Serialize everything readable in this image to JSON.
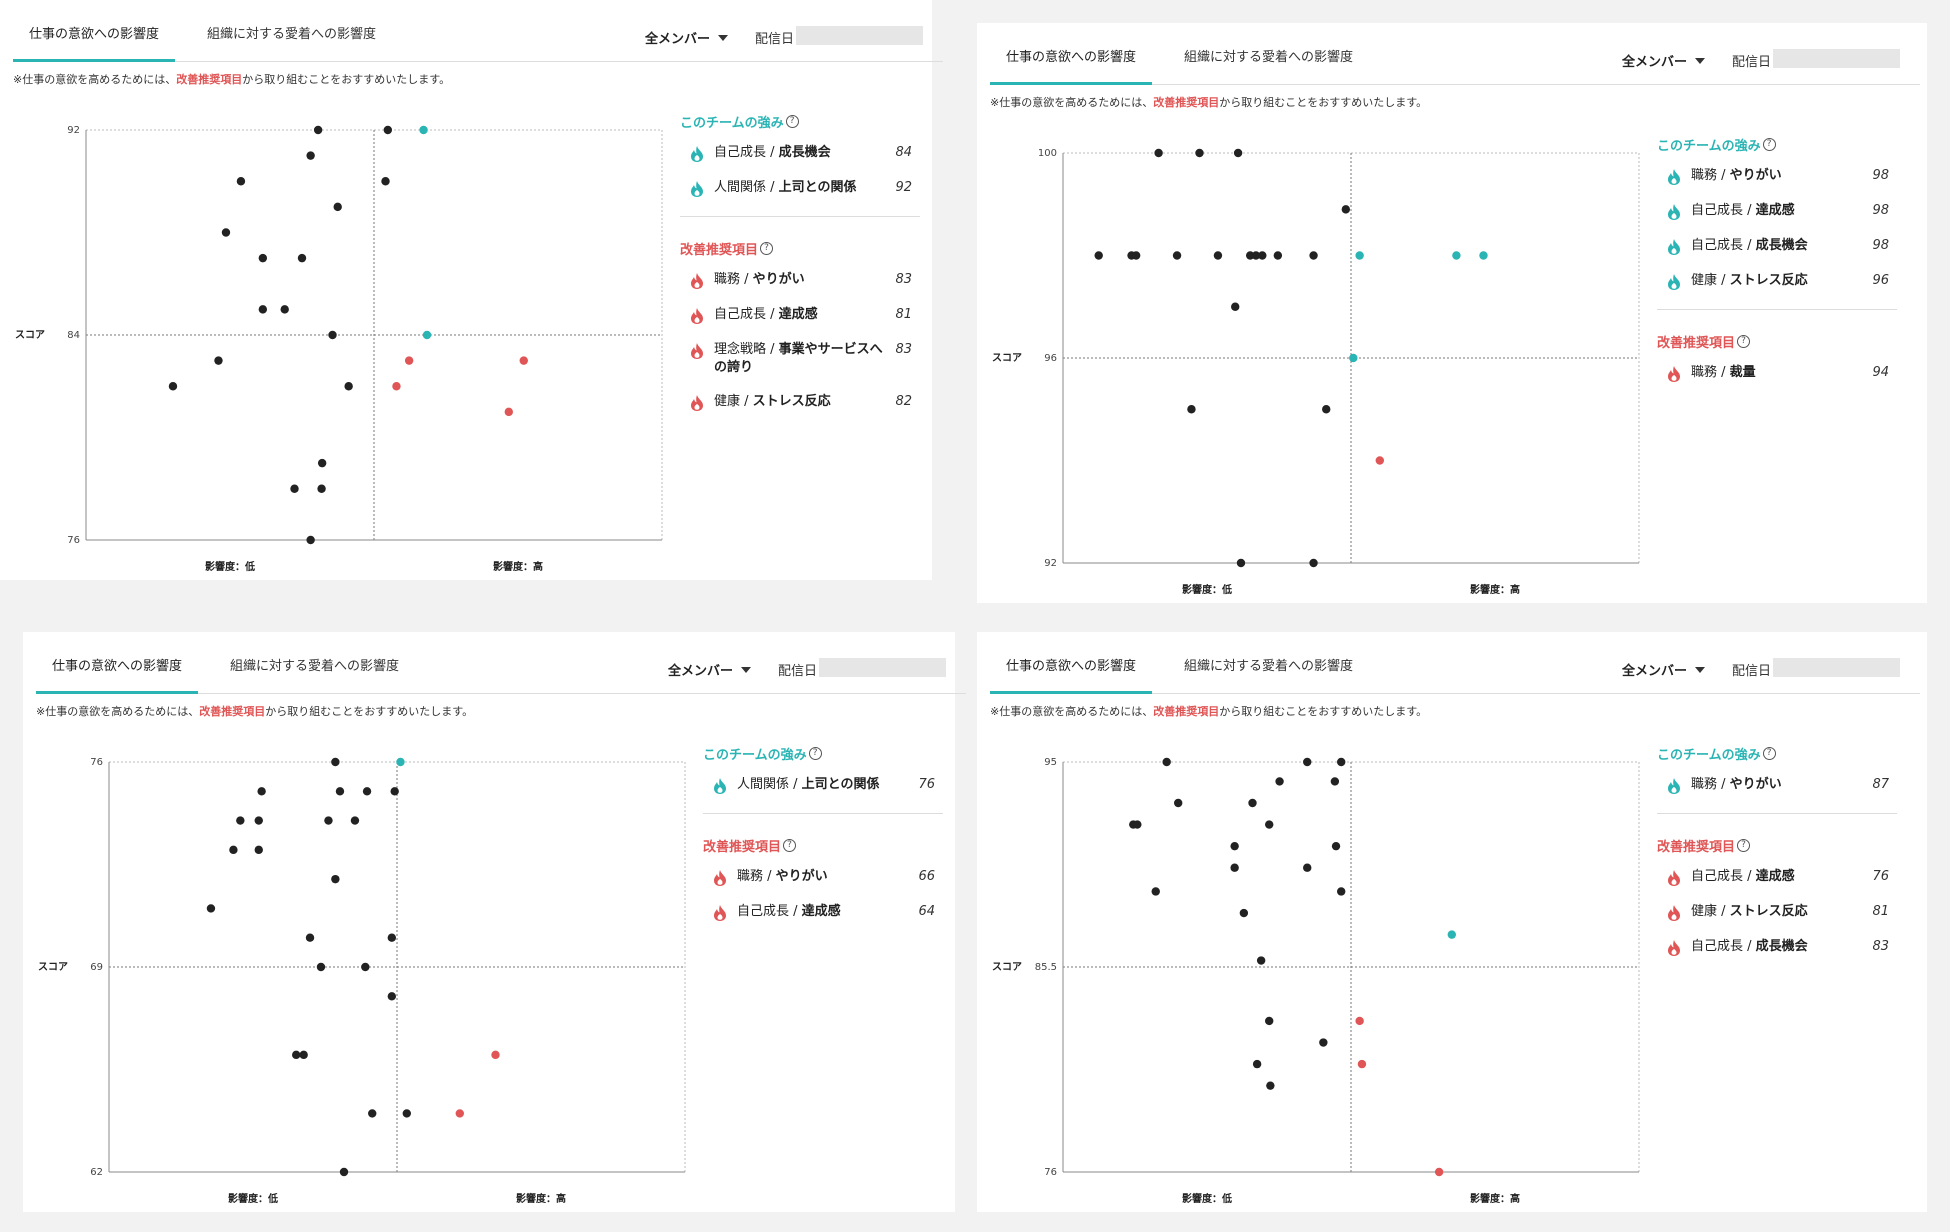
{
  "tabs": {
    "motivation": "仕事の意欲への影響度",
    "attachment": "組織に対する愛着への影響度"
  },
  "member_filter": "全メンバー",
  "date_label": "配信日",
  "note": {
    "prefix": "※仕事の意欲を高めるためには、",
    "highlight": "改善推奨項目",
    "suffix": "から取り組むことをおすすめいたします。"
  },
  "axis": {
    "score": "スコア",
    "low": "影響度：低",
    "high": "影響度：高"
  },
  "section_titles": {
    "strengths": "このチームの強み",
    "improvements": "改善推奨項目",
    "help": "?"
  },
  "colors": {
    "teal": "#2bb4b4",
    "red": "#e05555",
    "black": "#222222"
  },
  "panels": [
    {
      "strengths": [
        {
          "cat": "職務 / ",
          "name": "やりがい",
          "value": "98"
        },
        {
          "cat": "自己成長 / ",
          "name": "達成感",
          "value": "98"
        },
        {
          "cat": "自己成長 / ",
          "name": "成長機会",
          "value": "98"
        },
        {
          "cat": "健康 / ",
          "name": "ストレス反応",
          "value": "96"
        }
      ],
      "improvements": [
        {
          "cat": "職務 / ",
          "name": "裁量",
          "value": "94"
        }
      ]
    },
    {
      "strengths": [
        {
          "cat": "人間関係 / ",
          "name": "上司との関係",
          "value": "76"
        }
      ],
      "improvements": [
        {
          "cat": "職務 / ",
          "name": "やりがい",
          "value": "66"
        },
        {
          "cat": "自己成長 / ",
          "name": "達成感",
          "value": "64"
        }
      ]
    },
    {
      "strengths": [
        {
          "cat": "職務 / ",
          "name": "やりがい",
          "value": "87"
        }
      ],
      "improvements": [
        {
          "cat": "自己成長 / ",
          "name": "達成感",
          "value": "76"
        },
        {
          "cat": "健康 / ",
          "name": "ストレス反応",
          "value": "81"
        },
        {
          "cat": "自己成長 / ",
          "name": "成長機会",
          "value": "83"
        }
      ]
    },
    {
      "strengths": [
        {
          "cat": "自己成長 / ",
          "name": "成長機会",
          "value": "84"
        },
        {
          "cat": "人間関係 / ",
          "name": "上司との関係",
          "value": "92"
        }
      ],
      "improvements": [
        {
          "cat": "職務 / ",
          "name": "やりがい",
          "value": "83"
        },
        {
          "cat": "自己成長 / ",
          "name": "達成感",
          "value": "81"
        },
        {
          "cat": "理念戦略 / ",
          "name": "事業やサービスへの誇り",
          "value": "83"
        },
        {
          "cat": "健康 / ",
          "name": "ストレス反応",
          "value": "82"
        }
      ]
    }
  ],
  "chart_data": [
    {
      "type": "scatter",
      "title": "仕事の意欲への影響度",
      "ylabel": "スコア",
      "xlabel_low": "影響度：低",
      "xlabel_high": "影響度：高",
      "ylim": [
        92,
        100
      ],
      "yticks": [
        "100",
        "96",
        "92"
      ],
      "xlim": [
        0,
        100
      ],
      "points": [
        {
          "x": 16.6,
          "y": 100,
          "c": "k"
        },
        {
          "x": 23.7,
          "y": 100,
          "c": "k"
        },
        {
          "x": 30.4,
          "y": 100,
          "c": "k"
        },
        {
          "x": 49.1,
          "y": 98.9,
          "c": "k"
        },
        {
          "x": 6.2,
          "y": 98,
          "c": "k"
        },
        {
          "x": 11.9,
          "y": 98,
          "c": "k"
        },
        {
          "x": 12.7,
          "y": 98,
          "c": "k"
        },
        {
          "x": 19.8,
          "y": 98,
          "c": "k"
        },
        {
          "x": 26.9,
          "y": 98,
          "c": "k"
        },
        {
          "x": 32.5,
          "y": 98,
          "c": "k"
        },
        {
          "x": 33.5,
          "y": 98,
          "c": "k"
        },
        {
          "x": 34.6,
          "y": 98,
          "c": "k"
        },
        {
          "x": 37.3,
          "y": 98,
          "c": "k"
        },
        {
          "x": 43.5,
          "y": 98,
          "c": "k"
        },
        {
          "x": 51.5,
          "y": 98,
          "c": "t"
        },
        {
          "x": 68.3,
          "y": 98,
          "c": "t"
        },
        {
          "x": 73.0,
          "y": 98,
          "c": "t"
        },
        {
          "x": 29.9,
          "y": 97,
          "c": "k"
        },
        {
          "x": 50.4,
          "y": 96,
          "c": "t"
        },
        {
          "x": 22.3,
          "y": 95,
          "c": "k"
        },
        {
          "x": 45.7,
          "y": 95,
          "c": "k"
        },
        {
          "x": 55.0,
          "y": 94,
          "c": "r"
        },
        {
          "x": 30.9,
          "y": 92,
          "c": "k"
        },
        {
          "x": 43.5,
          "y": 92,
          "c": "k"
        }
      ]
    },
    {
      "type": "scatter",
      "title": "仕事の意欲への影響度",
      "ylabel": "スコア",
      "xlabel_low": "影響度：低",
      "xlabel_high": "影響度：高",
      "ylim": [
        62,
        76
      ],
      "yticks": [
        "76",
        "69",
        "62"
      ],
      "xlim": [
        0,
        100
      ],
      "points": [
        {
          "x": 50.6,
          "y": 76,
          "c": "t"
        },
        {
          "x": 39.3,
          "y": 76,
          "c": "k"
        },
        {
          "x": 26.5,
          "y": 75,
          "c": "k"
        },
        {
          "x": 40.1,
          "y": 75,
          "c": "k"
        },
        {
          "x": 44.8,
          "y": 75,
          "c": "k"
        },
        {
          "x": 49.6,
          "y": 75,
          "c": "k"
        },
        {
          "x": 22.8,
          "y": 74,
          "c": "k"
        },
        {
          "x": 26.0,
          "y": 74,
          "c": "k"
        },
        {
          "x": 38.1,
          "y": 74,
          "c": "k"
        },
        {
          "x": 42.7,
          "y": 74,
          "c": "k"
        },
        {
          "x": 21.6,
          "y": 73,
          "c": "k"
        },
        {
          "x": 26.0,
          "y": 73,
          "c": "k"
        },
        {
          "x": 39.3,
          "y": 72,
          "c": "k"
        },
        {
          "x": 17.7,
          "y": 71,
          "c": "k"
        },
        {
          "x": 34.9,
          "y": 70,
          "c": "k"
        },
        {
          "x": 49.1,
          "y": 70,
          "c": "k"
        },
        {
          "x": 36.8,
          "y": 69,
          "c": "k"
        },
        {
          "x": 44.5,
          "y": 69,
          "c": "k"
        },
        {
          "x": 49.1,
          "y": 68,
          "c": "k"
        },
        {
          "x": 32.5,
          "y": 66,
          "c": "k"
        },
        {
          "x": 33.8,
          "y": 66,
          "c": "k"
        },
        {
          "x": 67.1,
          "y": 66,
          "c": "r"
        },
        {
          "x": 45.7,
          "y": 64,
          "c": "k"
        },
        {
          "x": 51.7,
          "y": 64,
          "c": "k"
        },
        {
          "x": 60.9,
          "y": 64,
          "c": "r"
        },
        {
          "x": 40.8,
          "y": 62,
          "c": "k"
        }
      ]
    },
    {
      "type": "scatter",
      "title": "仕事の意欲への影響度",
      "ylabel": "スコア",
      "xlabel_low": "影響度：低",
      "xlabel_high": "影響度：高",
      "ylim": [
        76,
        95
      ],
      "yticks": [
        "95",
        "85.5",
        "76"
      ],
      "xlim": [
        0,
        100
      ],
      "points": [
        {
          "x": 18.0,
          "y": 95,
          "c": "k"
        },
        {
          "x": 42.4,
          "y": 95,
          "c": "k"
        },
        {
          "x": 48.3,
          "y": 95,
          "c": "k"
        },
        {
          "x": 37.6,
          "y": 94.1,
          "c": "k"
        },
        {
          "x": 47.2,
          "y": 94.1,
          "c": "k"
        },
        {
          "x": 20.0,
          "y": 93.1,
          "c": "k"
        },
        {
          "x": 32.9,
          "y": 93.1,
          "c": "k"
        },
        {
          "x": 12.2,
          "y": 92.1,
          "c": "k"
        },
        {
          "x": 12.9,
          "y": 92.1,
          "c": "k"
        },
        {
          "x": 35.8,
          "y": 92.1,
          "c": "k"
        },
        {
          "x": 29.8,
          "y": 91.1,
          "c": "k"
        },
        {
          "x": 47.4,
          "y": 91.1,
          "c": "k"
        },
        {
          "x": 29.8,
          "y": 90.1,
          "c": "k"
        },
        {
          "x": 42.4,
          "y": 90.1,
          "c": "k"
        },
        {
          "x": 16.1,
          "y": 89.0,
          "c": "k"
        },
        {
          "x": 48.3,
          "y": 89.0,
          "c": "k"
        },
        {
          "x": 31.4,
          "y": 88.0,
          "c": "k"
        },
        {
          "x": 67.5,
          "y": 87,
          "c": "t"
        },
        {
          "x": 34.4,
          "y": 85.8,
          "c": "k"
        },
        {
          "x": 51.5,
          "y": 83.0,
          "c": "r"
        },
        {
          "x": 35.8,
          "y": 83.0,
          "c": "k"
        },
        {
          "x": 45.2,
          "y": 82.0,
          "c": "k"
        },
        {
          "x": 51.9,
          "y": 81.0,
          "c": "r"
        },
        {
          "x": 33.7,
          "y": 81.0,
          "c": "k"
        },
        {
          "x": 36.0,
          "y": 80.0,
          "c": "k"
        },
        {
          "x": 65.3,
          "y": 76,
          "c": "r"
        }
      ]
    },
    {
      "type": "scatter",
      "title": "仕事の意欲への影響度",
      "ylabel": "スコア",
      "xlabel_low": "影響度：低",
      "xlabel_high": "影響度：高",
      "ylim": [
        76,
        92
      ],
      "yticks": [
        "92",
        "84",
        "76"
      ],
      "xlim": [
        0,
        100
      ],
      "points": [
        {
          "x": 40.3,
          "y": 92,
          "c": "k"
        },
        {
          "x": 52.4,
          "y": 92,
          "c": "k"
        },
        {
          "x": 58.6,
          "y": 92,
          "c": "t"
        },
        {
          "x": 39.0,
          "y": 91,
          "c": "k"
        },
        {
          "x": 26.9,
          "y": 90,
          "c": "k"
        },
        {
          "x": 52.0,
          "y": 90,
          "c": "k"
        },
        {
          "x": 43.7,
          "y": 89,
          "c": "k"
        },
        {
          "x": 24.3,
          "y": 88,
          "c": "k"
        },
        {
          "x": 30.7,
          "y": 87,
          "c": "k"
        },
        {
          "x": 37.5,
          "y": 87,
          "c": "k"
        },
        {
          "x": 30.7,
          "y": 85,
          "c": "k"
        },
        {
          "x": 34.5,
          "y": 85,
          "c": "k"
        },
        {
          "x": 42.8,
          "y": 84,
          "c": "k"
        },
        {
          "x": 59.2,
          "y": 84,
          "c": "t"
        },
        {
          "x": 23.0,
          "y": 83,
          "c": "k"
        },
        {
          "x": 56.1,
          "y": 83,
          "c": "r"
        },
        {
          "x": 76.0,
          "y": 83,
          "c": "r"
        },
        {
          "x": 15.1,
          "y": 82,
          "c": "k"
        },
        {
          "x": 45.6,
          "y": 82,
          "c": "k"
        },
        {
          "x": 53.9,
          "y": 82,
          "c": "r"
        },
        {
          "x": 73.4,
          "y": 81,
          "c": "r"
        },
        {
          "x": 41.0,
          "y": 79,
          "c": "k"
        },
        {
          "x": 36.2,
          "y": 78,
          "c": "k"
        },
        {
          "x": 40.9,
          "y": 78,
          "c": "k"
        },
        {
          "x": 39.0,
          "y": 76,
          "c": "k"
        }
      ]
    }
  ]
}
